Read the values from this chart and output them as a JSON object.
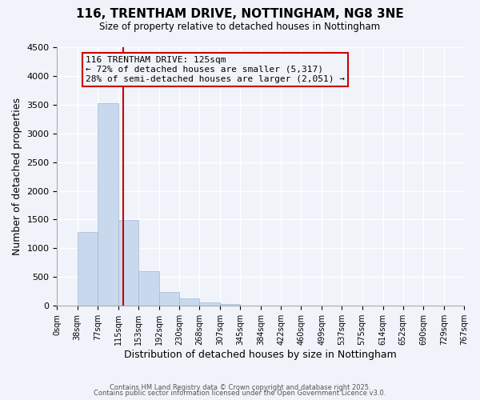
{
  "title": "116, TRENTHAM DRIVE, NOTTINGHAM, NG8 3NE",
  "subtitle": "Size of property relative to detached houses in Nottingham",
  "xlabel": "Distribution of detached houses by size in Nottingham",
  "ylabel": "Number of detached properties",
  "bar_counts": [
    0,
    1280,
    3530,
    1490,
    600,
    245,
    130,
    65,
    30,
    0,
    0,
    0,
    0,
    0,
    0,
    0,
    0,
    0,
    0,
    0
  ],
  "bin_edges": [
    0,
    38,
    77,
    115,
    153,
    192,
    230,
    268,
    307,
    345,
    384,
    422,
    460,
    499,
    537,
    575,
    614,
    652,
    690,
    729,
    767
  ],
  "tick_labels": [
    "0sqm",
    "38sqm",
    "77sqm",
    "115sqm",
    "153sqm",
    "192sqm",
    "230sqm",
    "268sqm",
    "307sqm",
    "345sqm",
    "384sqm",
    "422sqm",
    "460sqm",
    "499sqm",
    "537sqm",
    "575sqm",
    "614sqm",
    "652sqm",
    "690sqm",
    "729sqm",
    "767sqm"
  ],
  "bar_color": "#c8d9ed",
  "bar_edge_color": "#a0b8d4",
  "vline_x": 125,
  "vline_color": "#cc0000",
  "ylim": [
    0,
    4500
  ],
  "yticks": [
    0,
    500,
    1000,
    1500,
    2000,
    2500,
    3000,
    3500,
    4000,
    4500
  ],
  "annotation_box_text": "116 TRENTHAM DRIVE: 125sqm\n← 72% of detached houses are smaller (5,317)\n28% of semi-detached houses are larger (2,051) →",
  "annotation_box_color": "#cc0000",
  "footer_line1": "Contains HM Land Registry data © Crown copyright and database right 2025.",
  "footer_line2": "Contains public sector information licensed under the Open Government Licence v3.0.",
  "bg_color": "#f0f4fa",
  "grid_color": "#ffffff"
}
